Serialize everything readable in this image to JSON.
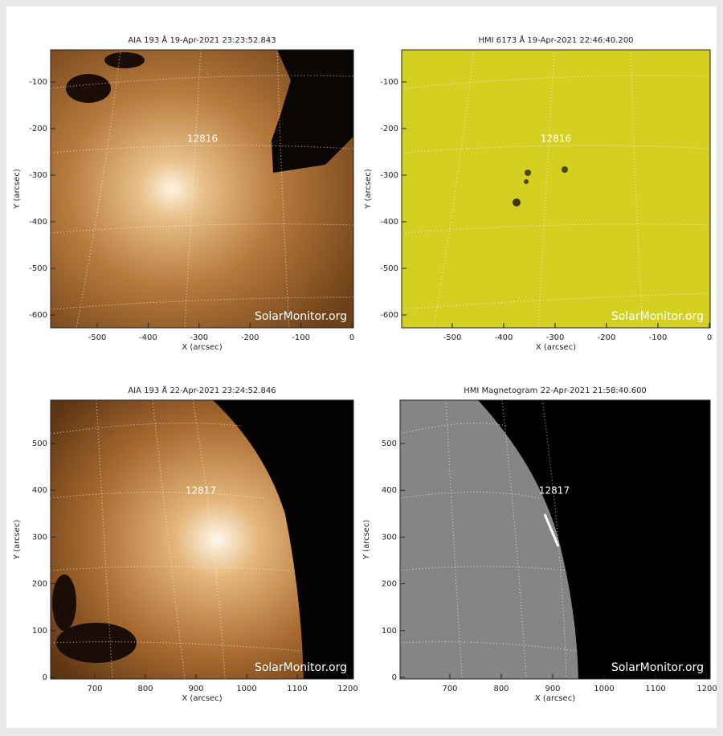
{
  "panels": [
    {
      "title": "AIA 193 Å 19-Apr-2021 23:23:52.843",
      "x_label": "X (arcsec)",
      "y_label": "Y (arcsec)",
      "x_ticks": [
        -500,
        -400,
        -300,
        -200,
        -100,
        0
      ],
      "y_ticks": [
        -100,
        -200,
        -300,
        -400,
        -500,
        -600
      ],
      "region_label": "12816",
      "watermark": "SolarMonitor.org"
    },
    {
      "title": "HMI 6173 Å 19-Apr-2021 22:46:40.200",
      "x_label": "X (arcsec)",
      "y_label": "Y (arcsec)",
      "x_ticks": [
        -500,
        -400,
        -300,
        -200,
        -100,
        0
      ],
      "y_ticks": [
        -100,
        -200,
        -300,
        -400,
        -500,
        -600
      ],
      "region_label": "12816",
      "watermark": "SolarMonitor.org"
    },
    {
      "title": "AIA 193 Å 22-Apr-2021 23:24:52.846",
      "x_label": "X (arcsec)",
      "y_label": "Y (arcsec)",
      "x_ticks": [
        700,
        800,
        900,
        1000,
        1100,
        1200
      ],
      "y_ticks": [
        0,
        100,
        200,
        300,
        400,
        500
      ],
      "region_label": "12817",
      "watermark": "SolarMonitor.org"
    },
    {
      "title": "HMI Magnetogram 22-Apr-2021 21:58:40.600",
      "x_label": "X (arcsec)",
      "y_label": "Y (arcsec)",
      "x_ticks": [
        700,
        800,
        900,
        1000,
        1100,
        1200
      ],
      "y_ticks": [
        0,
        100,
        200,
        300,
        400,
        500
      ],
      "region_label": "12817",
      "watermark": "SolarMonitor.org"
    }
  ]
}
